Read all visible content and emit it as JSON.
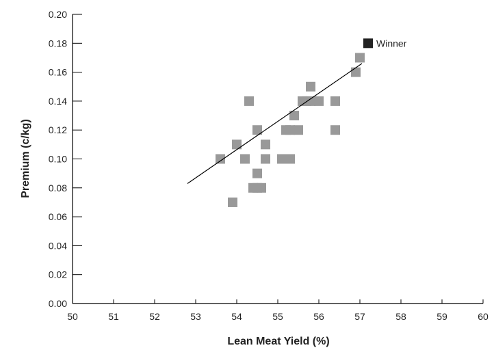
{
  "chart_data": {
    "type": "scatter",
    "xlabel": "Lean Meat Yield (%)",
    "ylabel": "Premium (c/kg)",
    "xlim": [
      50,
      60
    ],
    "ylim": [
      0,
      0.2
    ],
    "x_ticks": [
      "50",
      "51",
      "52",
      "53",
      "54",
      "55",
      "56",
      "57",
      "58",
      "59",
      "60"
    ],
    "y_ticks": [
      "0.00",
      "0.02",
      "0.04",
      "0.06",
      "0.08",
      "0.10",
      "0.12",
      "0.14",
      "0.16",
      "0.18",
      "0.20"
    ],
    "grid": false,
    "colors": {
      "points": "#999999",
      "winner": "#222222",
      "line": "#000000",
      "axis": "#000000"
    },
    "series": [
      {
        "points": [
          [
            53.6,
            0.1
          ],
          [
            53.9,
            0.07
          ],
          [
            54.0,
            0.11
          ],
          [
            54.2,
            0.1
          ],
          [
            54.3,
            0.14
          ],
          [
            54.4,
            0.08
          ],
          [
            54.5,
            0.08
          ],
          [
            54.5,
            0.09
          ],
          [
            54.5,
            0.12
          ],
          [
            54.6,
            0.08
          ],
          [
            54.7,
            0.1
          ],
          [
            54.7,
            0.11
          ],
          [
            55.1,
            0.1
          ],
          [
            55.2,
            0.1
          ],
          [
            55.2,
            0.12
          ],
          [
            55.3,
            0.1
          ],
          [
            55.3,
            0.12
          ],
          [
            55.4,
            0.13
          ],
          [
            55.5,
            0.12
          ],
          [
            55.6,
            0.14
          ],
          [
            55.7,
            0.14
          ],
          [
            55.8,
            0.15
          ],
          [
            55.8,
            0.14
          ],
          [
            56.0,
            0.14
          ],
          [
            56.4,
            0.14
          ],
          [
            56.4,
            0.12
          ],
          [
            56.9,
            0.16
          ],
          [
            57.0,
            0.17
          ]
        ]
      }
    ],
    "winner": {
      "x": 57.2,
      "y": 0.18,
      "label": "Winner"
    },
    "trendline": {
      "x": [
        52.8,
        57.05
      ],
      "y": [
        0.083,
        0.166
      ]
    }
  }
}
